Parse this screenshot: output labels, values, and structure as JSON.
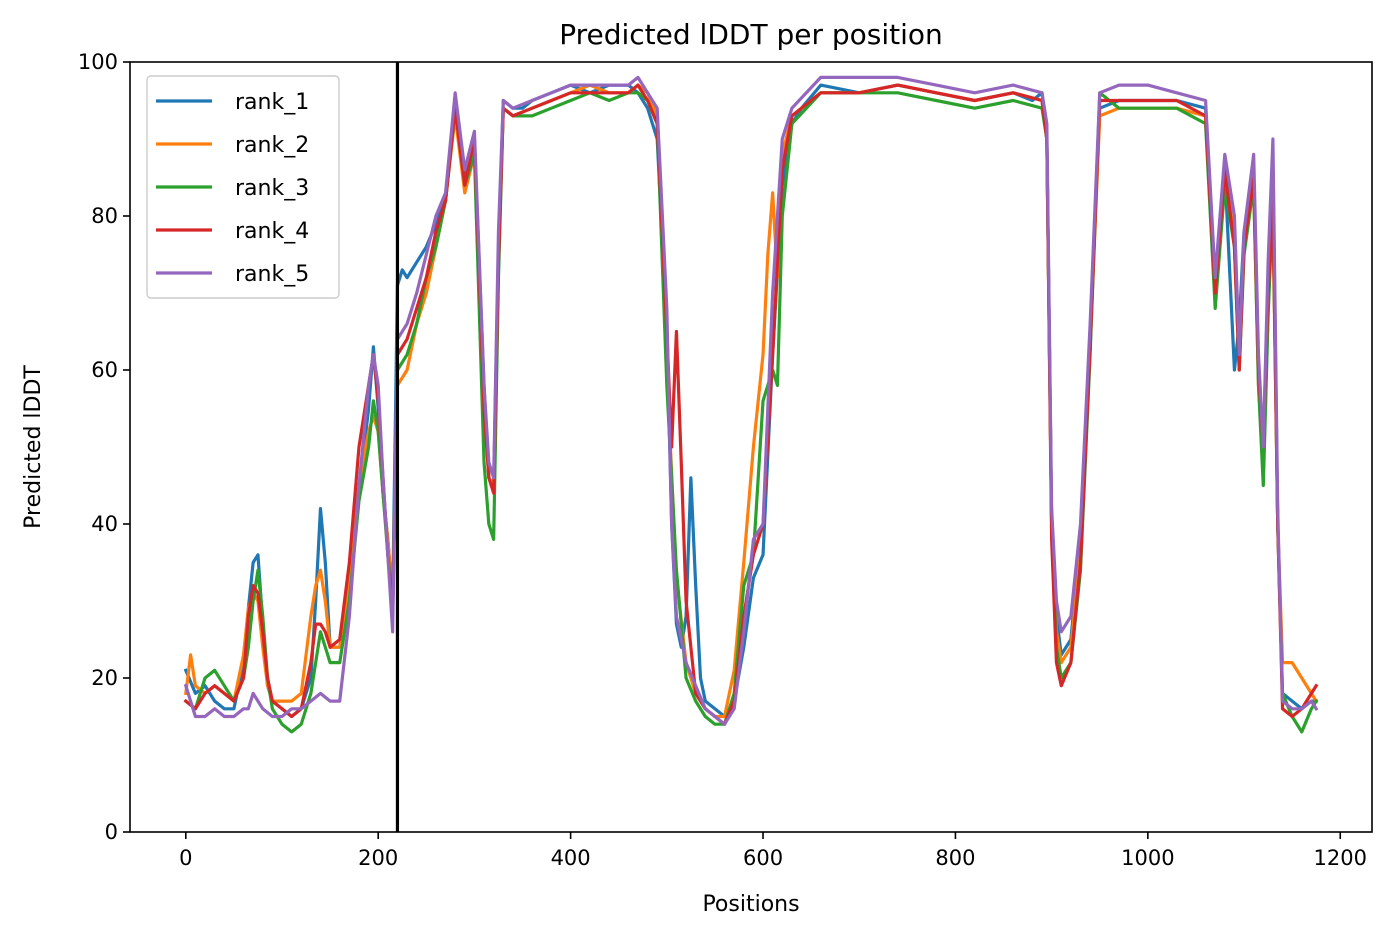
{
  "chart_data": {
    "type": "line",
    "title": "Predicted lDDT per position",
    "xlabel": "Positions",
    "ylabel": "Predicted lDDT",
    "xlim": [
      -58,
      1233
    ],
    "ylim": [
      0,
      100
    ],
    "xticks": [
      0,
      200,
      400,
      600,
      800,
      1000,
      1200
    ],
    "yticks": [
      0,
      20,
      40,
      60,
      80,
      100
    ],
    "grid": false,
    "legend_position": "upper-left",
    "vline_x": 220,
    "series": [
      {
        "name": "rank_1",
        "color": "#1f77b4",
        "x": [
          0,
          10,
          20,
          30,
          40,
          50,
          60,
          65,
          70,
          75,
          80,
          85,
          90,
          100,
          110,
          120,
          130,
          135,
          140,
          145,
          150,
          160,
          170,
          180,
          190,
          195,
          200,
          205,
          210,
          215,
          220,
          225,
          230,
          240,
          250,
          260,
          270,
          280,
          290,
          300,
          310,
          315,
          320,
          325,
          330,
          340,
          350,
          360,
          380,
          400,
          420,
          440,
          460,
          470,
          480,
          490,
          500,
          505,
          510,
          515,
          520,
          525,
          530,
          535,
          540,
          550,
          560,
          570,
          580,
          590,
          600,
          610,
          620,
          630,
          640,
          660,
          700,
          740,
          780,
          820,
          860,
          880,
          890,
          895,
          900,
          905,
          910,
          920,
          930,
          940,
          950,
          970,
          1000,
          1030,
          1060,
          1070,
          1080,
          1090,
          1095,
          1100,
          1110,
          1115,
          1120,
          1125,
          1130,
          1135,
          1140,
          1150,
          1160,
          1170,
          1175
        ],
        "y": [
          21,
          18,
          19,
          17,
          16,
          16,
          22,
          29,
          35,
          36,
          27,
          19,
          17,
          16,
          15,
          16,
          20,
          30,
          42,
          35,
          24,
          24,
          30,
          44,
          55,
          63,
          55,
          44,
          38,
          30,
          71,
          73,
          72,
          74,
          76,
          79,
          82,
          95,
          85,
          90,
          58,
          46,
          45,
          75,
          95,
          94,
          94,
          95,
          96,
          97,
          96,
          97,
          97,
          96,
          94,
          90,
          65,
          40,
          27,
          24,
          28,
          46,
          32,
          20,
          17,
          16,
          15,
          17,
          24,
          33,
          36,
          62,
          84,
          92,
          94,
          97,
          96,
          97,
          96,
          95,
          96,
          95,
          96,
          90,
          40,
          28,
          23,
          25,
          38,
          65,
          94,
          95,
          95,
          95,
          94,
          70,
          86,
          60,
          66,
          78,
          85,
          60,
          50,
          72,
          87,
          40,
          18,
          17,
          16,
          17,
          17
        ]
      },
      {
        "name": "rank_2",
        "color": "#ff7f0e",
        "x": [
          0,
          5,
          10,
          20,
          30,
          40,
          50,
          60,
          65,
          70,
          75,
          80,
          85,
          90,
          100,
          110,
          120,
          130,
          135,
          140,
          145,
          150,
          160,
          170,
          180,
          190,
          195,
          200,
          205,
          210,
          215,
          220,
          230,
          240,
          250,
          260,
          270,
          280,
          290,
          300,
          310,
          315,
          320,
          325,
          330,
          340,
          360,
          380,
          400,
          420,
          440,
          460,
          470,
          480,
          490,
          500,
          510,
          520,
          530,
          540,
          550,
          560,
          570,
          580,
          590,
          600,
          605,
          610,
          615,
          620,
          630,
          660,
          700,
          740,
          780,
          820,
          860,
          890,
          895,
          900,
          905,
          910,
          920,
          930,
          940,
          950,
          970,
          1000,
          1030,
          1060,
          1070,
          1080,
          1090,
          1095,
          1100,
          1110,
          1115,
          1120,
          1125,
          1130,
          1135,
          1140,
          1150,
          1160,
          1170,
          1175
        ],
        "y": [
          18,
          23,
          19,
          18,
          19,
          18,
          17,
          23,
          29,
          31,
          30,
          24,
          19,
          17,
          17,
          17,
          18,
          28,
          32,
          34,
          30,
          24,
          24,
          33,
          45,
          52,
          54,
          52,
          44,
          38,
          30,
          58,
          60,
          66,
          70,
          76,
          82,
          93,
          83,
          88,
          56,
          46,
          45,
          75,
          94,
          93,
          94,
          95,
          96,
          97,
          96,
          96,
          97,
          96,
          93,
          60,
          33,
          22,
          18,
          16,
          15,
          15,
          21,
          35,
          50,
          62,
          75,
          83,
          72,
          88,
          93,
          96,
          96,
          97,
          96,
          95,
          96,
          95,
          90,
          40,
          26,
          22,
          24,
          36,
          63,
          93,
          94,
          94,
          94,
          93,
          70,
          85,
          78,
          62,
          76,
          84,
          58,
          48,
          70,
          80,
          40,
          22,
          22,
          20,
          18,
          17
        ]
      },
      {
        "name": "rank_3",
        "color": "#2ca02c",
        "x": [
          0,
          10,
          20,
          30,
          40,
          50,
          60,
          65,
          70,
          75,
          80,
          85,
          90,
          100,
          110,
          120,
          130,
          140,
          145,
          150,
          160,
          170,
          180,
          190,
          195,
          200,
          205,
          210,
          215,
          220,
          230,
          240,
          250,
          260,
          270,
          280,
          290,
          300,
          310,
          315,
          320,
          325,
          330,
          340,
          360,
          380,
          400,
          420,
          440,
          460,
          470,
          480,
          490,
          500,
          510,
          520,
          530,
          540,
          550,
          560,
          570,
          580,
          590,
          600,
          610,
          615,
          620,
          630,
          660,
          700,
          740,
          780,
          820,
          860,
          890,
          895,
          900,
          905,
          910,
          920,
          930,
          940,
          950,
          970,
          1000,
          1030,
          1060,
          1070,
          1080,
          1090,
          1095,
          1100,
          1110,
          1115,
          1120,
          1125,
          1130,
          1135,
          1140,
          1150,
          1160,
          1170,
          1175
        ],
        "y": [
          17,
          16,
          20,
          21,
          19,
          17,
          20,
          24,
          30,
          34,
          28,
          20,
          16,
          14,
          13,
          14,
          18,
          26,
          24,
          22,
          22,
          30,
          43,
          50,
          56,
          52,
          44,
          36,
          30,
          60,
          62,
          66,
          72,
          76,
          82,
          94,
          84,
          88,
          48,
          40,
          38,
          72,
          94,
          93,
          93,
          94,
          95,
          96,
          95,
          96,
          96,
          95,
          92,
          58,
          34,
          20,
          17,
          15,
          14,
          14,
          18,
          32,
          36,
          56,
          60,
          58,
          80,
          92,
          96,
          96,
          96,
          95,
          94,
          95,
          94,
          90,
          40,
          24,
          20,
          22,
          34,
          62,
          96,
          94,
          94,
          94,
          92,
          68,
          84,
          76,
          60,
          75,
          84,
          58,
          45,
          67,
          82,
          40,
          18,
          15,
          13,
          16,
          17
        ]
      },
      {
        "name": "rank_4",
        "color": "#d62728",
        "x": [
          0,
          10,
          20,
          30,
          40,
          50,
          60,
          65,
          70,
          75,
          80,
          85,
          90,
          100,
          110,
          120,
          130,
          135,
          140,
          145,
          150,
          160,
          170,
          180,
          190,
          195,
          200,
          205,
          210,
          215,
          220,
          230,
          240,
          250,
          260,
          270,
          280,
          290,
          300,
          310,
          315,
          320,
          325,
          330,
          340,
          360,
          380,
          400,
          420,
          440,
          460,
          470,
          480,
          490,
          500,
          505,
          510,
          515,
          520,
          530,
          540,
          550,
          560,
          570,
          580,
          590,
          600,
          610,
          620,
          630,
          660,
          700,
          740,
          780,
          820,
          860,
          890,
          895,
          900,
          905,
          910,
          920,
          930,
          940,
          950,
          970,
          1000,
          1030,
          1060,
          1070,
          1080,
          1090,
          1095,
          1100,
          1110,
          1115,
          1120,
          1125,
          1130,
          1135,
          1140,
          1150,
          1160,
          1170,
          1175
        ],
        "y": [
          17,
          16,
          18,
          19,
          18,
          17,
          20,
          28,
          32,
          31,
          26,
          20,
          17,
          16,
          15,
          16,
          22,
          27,
          27,
          26,
          24,
          25,
          35,
          50,
          58,
          62,
          56,
          46,
          36,
          28,
          62,
          64,
          68,
          72,
          78,
          82,
          94,
          84,
          90,
          55,
          46,
          44,
          74,
          94,
          93,
          94,
          95,
          96,
          96,
          96,
          96,
          97,
          95,
          92,
          65,
          50,
          65,
          48,
          30,
          18,
          16,
          15,
          14,
          17,
          28,
          36,
          40,
          62,
          86,
          93,
          96,
          96,
          97,
          96,
          95,
          96,
          95,
          90,
          38,
          22,
          19,
          22,
          35,
          63,
          95,
          95,
          95,
          95,
          93,
          70,
          86,
          76,
          60,
          76,
          85,
          60,
          50,
          70,
          82,
          40,
          16,
          15,
          16,
          18,
          19
        ]
      },
      {
        "name": "rank_5",
        "color": "#9467bd",
        "x": [
          0,
          5,
          10,
          20,
          30,
          40,
          50,
          60,
          65,
          70,
          75,
          80,
          90,
          100,
          110,
          120,
          130,
          140,
          150,
          160,
          170,
          180,
          190,
          195,
          200,
          205,
          210,
          215,
          220,
          230,
          240,
          250,
          260,
          270,
          280,
          290,
          300,
          310,
          315,
          320,
          325,
          330,
          340,
          360,
          380,
          400,
          420,
          440,
          460,
          470,
          480,
          490,
          500,
          505,
          510,
          520,
          530,
          540,
          550,
          560,
          570,
          580,
          590,
          600,
          610,
          620,
          630,
          660,
          700,
          740,
          780,
          820,
          860,
          890,
          895,
          900,
          905,
          910,
          920,
          930,
          940,
          950,
          970,
          1000,
          1030,
          1060,
          1070,
          1080,
          1090,
          1095,
          1100,
          1110,
          1115,
          1120,
          1125,
          1130,
          1135,
          1140,
          1150,
          1160,
          1170,
          1175
        ],
        "y": [
          19,
          17,
          15,
          15,
          16,
          15,
          15,
          16,
          16,
          18,
          17,
          16,
          15,
          15,
          16,
          16,
          17,
          18,
          17,
          17,
          28,
          45,
          58,
          62,
          58,
          46,
          36,
          26,
          64,
          66,
          70,
          75,
          80,
          83,
          96,
          86,
          91,
          58,
          48,
          46,
          78,
          95,
          94,
          95,
          96,
          97,
          97,
          97,
          97,
          98,
          96,
          94,
          68,
          40,
          28,
          22,
          19,
          16,
          15,
          14,
          16,
          26,
          38,
          40,
          70,
          90,
          94,
          98,
          98,
          98,
          97,
          96,
          97,
          96,
          92,
          42,
          30,
          26,
          28,
          40,
          66,
          96,
          97,
          97,
          96,
          95,
          72,
          88,
          80,
          62,
          78,
          88,
          62,
          50,
          74,
          90,
          42,
          17,
          16,
          16,
          17,
          16
        ]
      }
    ]
  }
}
